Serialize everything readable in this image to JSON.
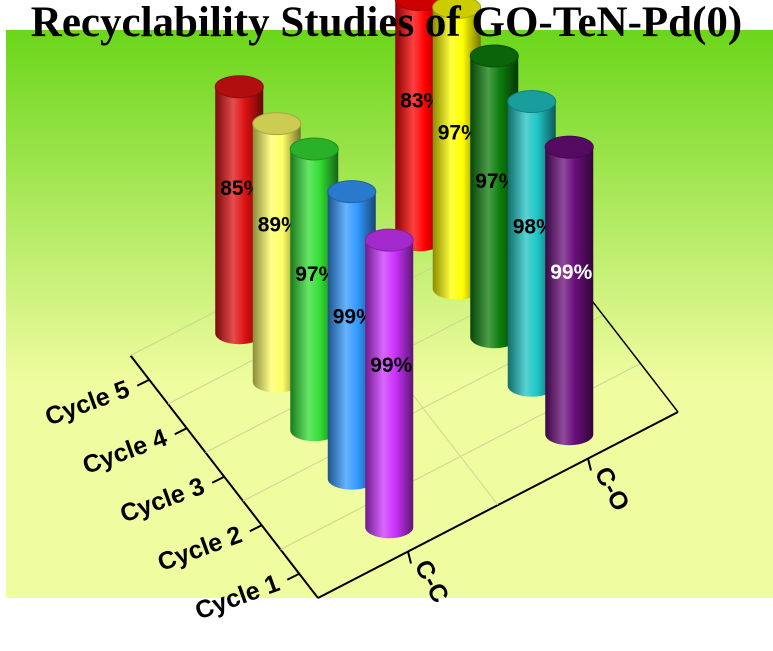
{
  "chart_data": {
    "type": "bar",
    "subtype": "3d-cylinder",
    "title": "Recyclability Studies of GO-TeN-Pd(0)",
    "categories": [
      "Cycle 1",
      "Cycle 2",
      "Cycle 3",
      "Cycle 4",
      "Cycle 5"
    ],
    "groups": [
      "C-C",
      "C-O"
    ],
    "unit": "%",
    "ylim": [
      0,
      100
    ],
    "series": [
      {
        "name": "C-C",
        "values": [
          99,
          99,
          97,
          89,
          85
        ],
        "labels": [
          "99%",
          "99%",
          "97%",
          "89%",
          "85%"
        ],
        "colors": [
          "#cc33ff",
          "#3399ff",
          "#33dd33",
          "#ffff66",
          "#dd1111"
        ]
      },
      {
        "name": "C-O",
        "values": [
          99,
          98,
          97,
          97,
          83
        ],
        "labels": [
          "99%",
          "98%",
          "97%",
          "97%",
          "83%"
        ],
        "colors": [
          "#6a0d7a",
          "#1fc4c4",
          "#0c7d0c",
          "#ffff00",
          "#ff0000"
        ]
      }
    ],
    "background_gradient": [
      "#6ad61a",
      "#f0fca0"
    ],
    "grid": false
  }
}
